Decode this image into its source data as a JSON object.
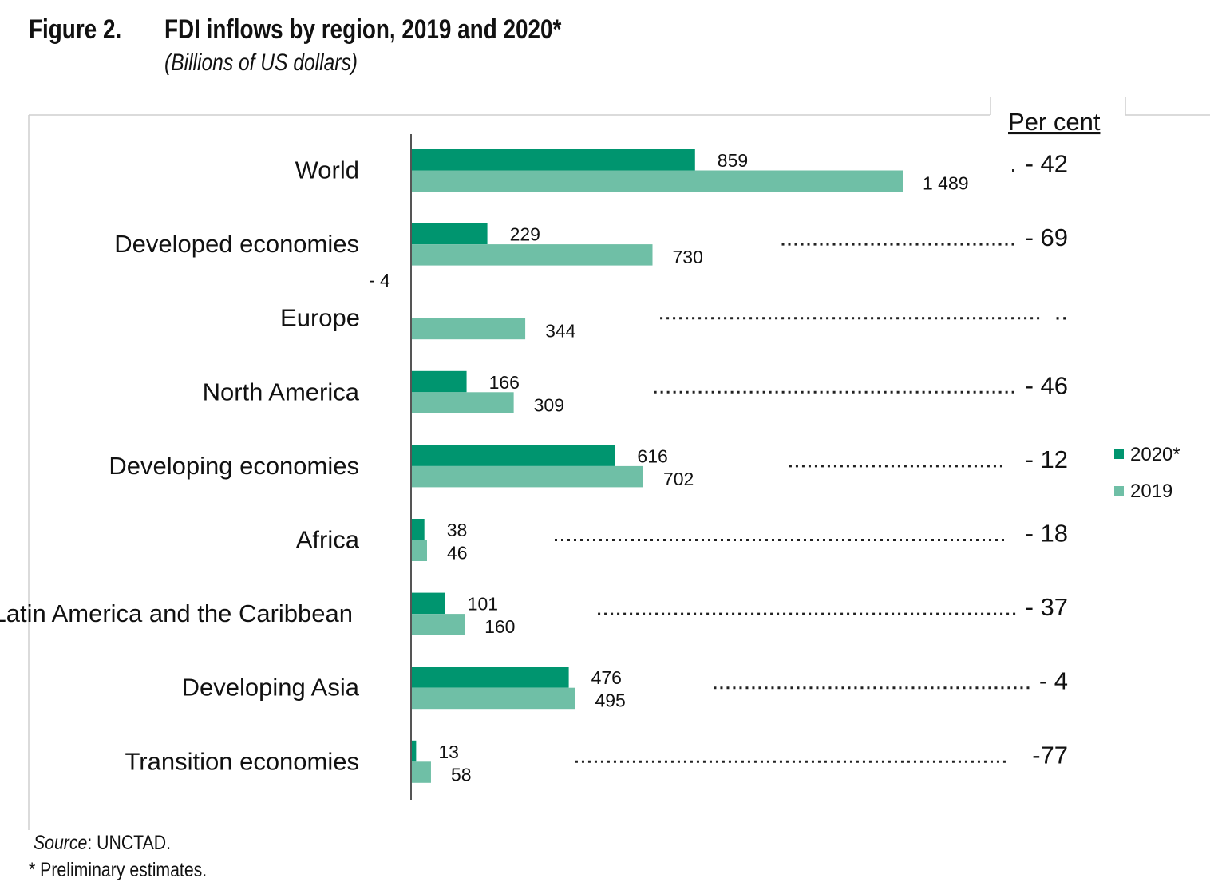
{
  "figure": {
    "label": "Figure 2.",
    "title": "FDI inflows by region, 2019 and 2020*",
    "subtitle": "(Billions of US dollars)"
  },
  "chart_data": {
    "type": "bar",
    "orientation": "horizontal",
    "unit": "Billions of US dollars",
    "percent_header": "Per cent",
    "categories": [
      "World",
      "Developed economies",
      "Europe",
      "North America",
      "Developing economies",
      "Africa",
      "Latin America and the Caribbean",
      "Developing Asia",
      "Transition economies"
    ],
    "series": [
      {
        "name": "2020*",
        "color": "#00956f",
        "values": [
          859,
          229,
          -4,
          166,
          616,
          38,
          101,
          476,
          13
        ],
        "labels": [
          "859",
          "229",
          "- 4",
          "166",
          "616",
          "38",
          "101",
          "476",
          "13"
        ]
      },
      {
        "name": "2019",
        "color": "#6fbfa6",
        "values": [
          1489,
          730,
          344,
          309,
          702,
          46,
          160,
          495,
          58
        ],
        "labels": [
          "1 489",
          "730",
          "344",
          "309",
          "702",
          "46",
          "160",
          "495",
          "58"
        ]
      }
    ],
    "percent_change": [
      "- 42",
      "- 69",
      "..",
      "- 46",
      "- 12",
      "- 18",
      "- 37",
      "- 4",
      "-77"
    ],
    "legend": [
      "2020*",
      "2019"
    ],
    "legend_position": "right"
  },
  "footer": {
    "source_label": "Source",
    "source_text": ": UNCTAD.",
    "note": "* Preliminary estimates."
  }
}
